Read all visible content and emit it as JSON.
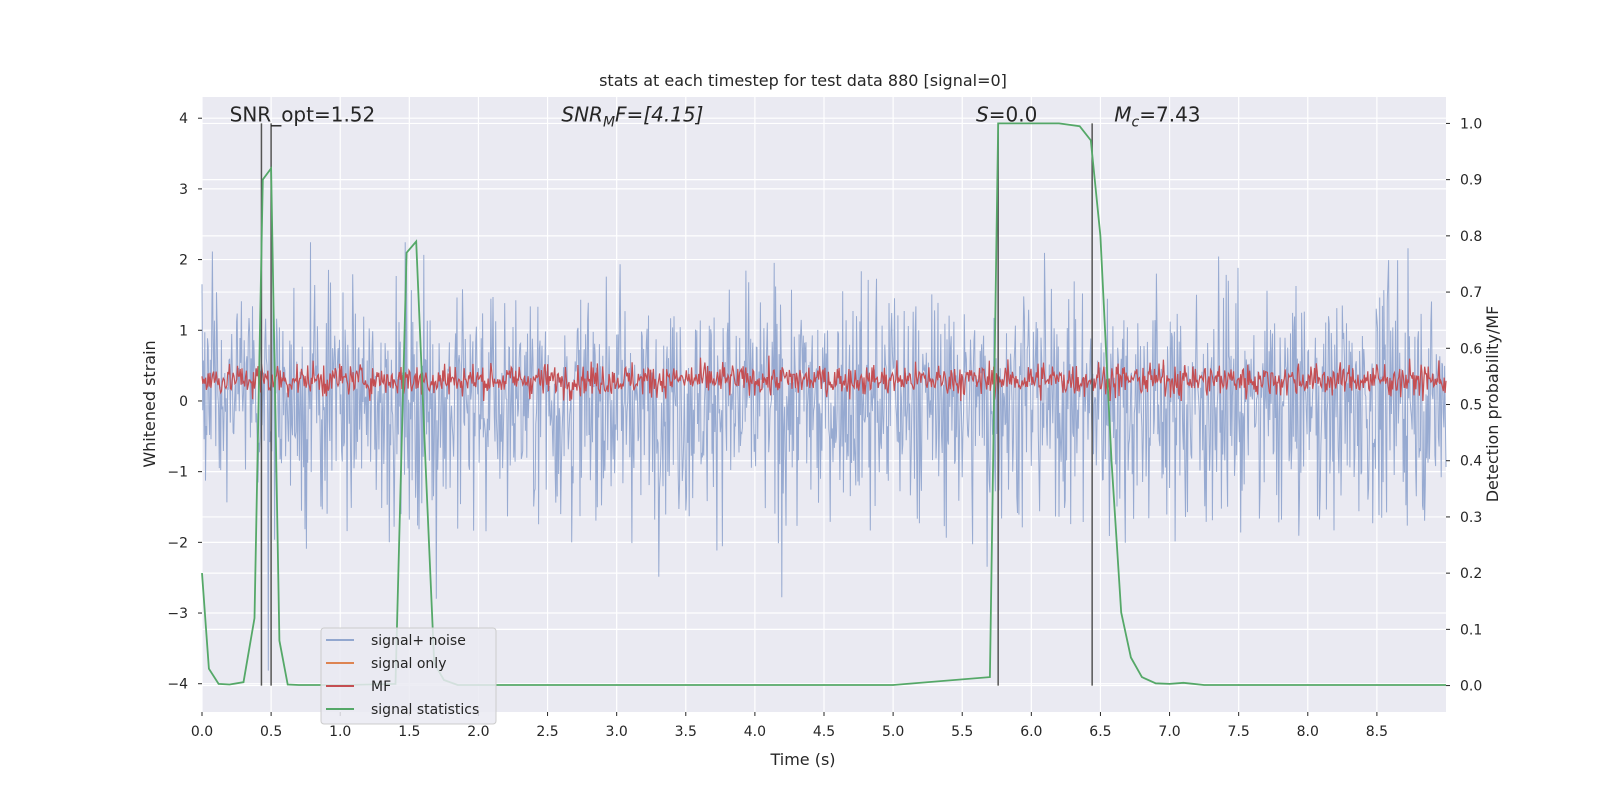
{
  "chart_data": {
    "type": "line",
    "title": "stats at each timestep for test data 880 [signal=0]",
    "xlabel": "Time (s)",
    "ylabel_left": "Whitened strain",
    "ylabel_right": "Detection probability/MF",
    "xlim": [
      0.0,
      9.0
    ],
    "ylim_left": [
      -4.4,
      4.3
    ],
    "ylim_right": [
      -0.047,
      1.047
    ],
    "x_ticks": [
      0.0,
      0.5,
      1.0,
      1.5,
      2.0,
      2.5,
      3.0,
      3.5,
      4.0,
      4.5,
      5.0,
      5.5,
      6.0,
      6.5,
      7.0,
      7.5,
      8.0,
      8.5
    ],
    "x_tick_labels": [
      "0.0",
      "0.5",
      "1.0",
      "1.5",
      "2.0",
      "2.5",
      "3.0",
      "3.5",
      "4.0",
      "4.5",
      "5.0",
      "5.5",
      "6.0",
      "6.5",
      "7.0",
      "7.5",
      "8.0",
      "8.5"
    ],
    "y_left_ticks": [
      -4,
      -3,
      -2,
      -1,
      0,
      1,
      2,
      3,
      4
    ],
    "y_left_tick_labels": [
      "−4",
      "−3",
      "−2",
      "−1",
      "0",
      "1",
      "2",
      "3",
      "4"
    ],
    "y_right_ticks": [
      0.0,
      0.1,
      0.2,
      0.3,
      0.4,
      0.5,
      0.6,
      0.7,
      0.8,
      0.9,
      1.0
    ],
    "y_right_tick_labels": [
      "0.0",
      "0.1",
      "0.2",
      "0.3",
      "0.4",
      "0.5",
      "0.6",
      "0.7",
      "0.8",
      "0.9",
      "1.0"
    ],
    "grid": true,
    "legend_position": "lower-left",
    "series": [
      {
        "name": "signal+ noise",
        "color": "#92a7cf",
        "axis": "left",
        "style": "dense noise, amplitude approx ±2.5, spikes to ±3.5"
      },
      {
        "name": "signal only",
        "color": "#dd8452",
        "axis": "left",
        "style": "not visible (zero signal)"
      },
      {
        "name": "MF",
        "color": "#c44e52",
        "axis": "left",
        "style": "dense band from about 0 to 0.7"
      },
      {
        "name": "signal statistics",
        "color": "#55a868",
        "axis": "right",
        "x": [
          0.0,
          0.05,
          0.12,
          0.2,
          0.3,
          0.38,
          0.44,
          0.5,
          0.56,
          0.62,
          0.7,
          0.8,
          1.0,
          1.2,
          1.4,
          1.48,
          1.55,
          1.62,
          1.68,
          1.75,
          1.85,
          2.0,
          3.0,
          4.0,
          5.0,
          5.7,
          5.76,
          5.8,
          6.0,
          6.2,
          6.35,
          6.43,
          6.5,
          6.58,
          6.65,
          6.72,
          6.8,
          6.9,
          7.0,
          7.1,
          7.25,
          7.5,
          8.0,
          8.5,
          9.0
        ],
        "y": [
          0.2,
          0.03,
          0.003,
          0.002,
          0.006,
          0.12,
          0.9,
          0.92,
          0.08,
          0.002,
          0.001,
          0.001,
          0.001,
          0.002,
          0.003,
          0.77,
          0.79,
          0.38,
          0.04,
          0.01,
          0.001,
          0.001,
          0.001,
          0.001,
          0.001,
          0.015,
          1.0,
          1.0,
          1.0,
          1.0,
          0.995,
          0.97,
          0.8,
          0.4,
          0.13,
          0.05,
          0.015,
          0.004,
          0.003,
          0.005,
          0.001,
          0.001,
          0.001,
          0.001,
          0.001
        ]
      }
    ],
    "vertical_lines_x": [
      0.43,
      0.5,
      5.76,
      6.44
    ],
    "vertical_line_color": "#555555",
    "annotations": [
      {
        "text": "SNR_opt=1.52",
        "x": 0.2,
        "y_right": 1.0,
        "style": "normal"
      },
      {
        "text": "SNR",
        "sub": "M",
        "suffix": "F=[4.15]",
        "x": 2.6,
        "y_right": 1.0,
        "style": "italic"
      },
      {
        "text": "S",
        "suffix": "=0.0",
        "x": 5.6,
        "y_right": 1.0,
        "style": "italic"
      },
      {
        "text": "M",
        "sub": "c",
        "suffix": "=7.43",
        "x": 6.6,
        "y_right": 1.0,
        "style": "italic"
      }
    ],
    "plot_background": "#eaeaf2",
    "grid_color": "#ffffff"
  }
}
